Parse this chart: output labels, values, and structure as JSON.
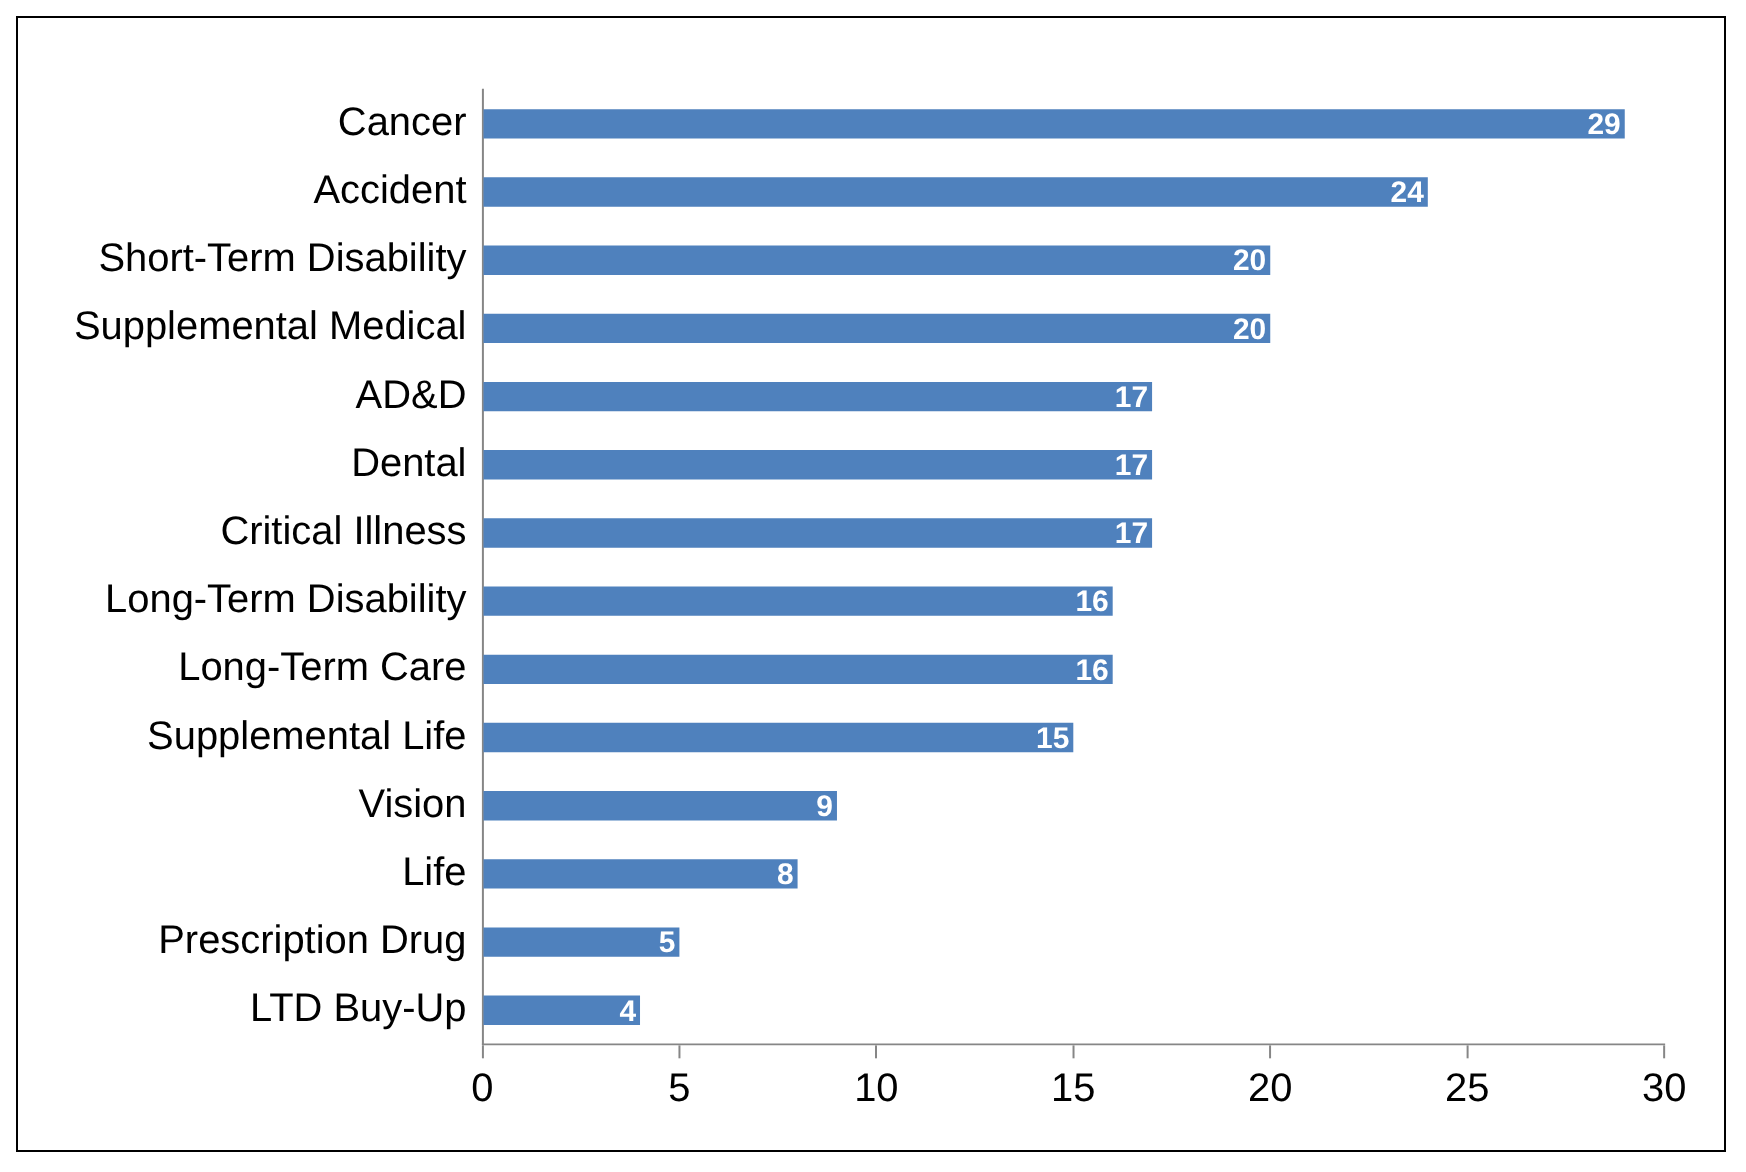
{
  "chart_data": {
    "type": "bar",
    "orientation": "horizontal",
    "categories": [
      "Cancer",
      "Accident",
      "Short-Term Disability",
      "Supplemental Medical",
      "AD&D",
      "Dental",
      "Critical Illness",
      "Long-Term Disability",
      "Long-Term Care",
      "Supplemental Life",
      "Vision",
      "Life",
      "Prescription Drug",
      "LTD Buy-Up"
    ],
    "values": [
      29,
      24,
      20,
      20,
      17,
      17,
      17,
      16,
      16,
      15,
      9,
      8,
      5,
      4
    ],
    "color": "#4f81bd",
    "xlim": [
      0,
      30
    ],
    "xticks": [
      0,
      5,
      10,
      15,
      20,
      25,
      30
    ],
    "grid": false,
    "legend": false,
    "data_labels": true
  }
}
